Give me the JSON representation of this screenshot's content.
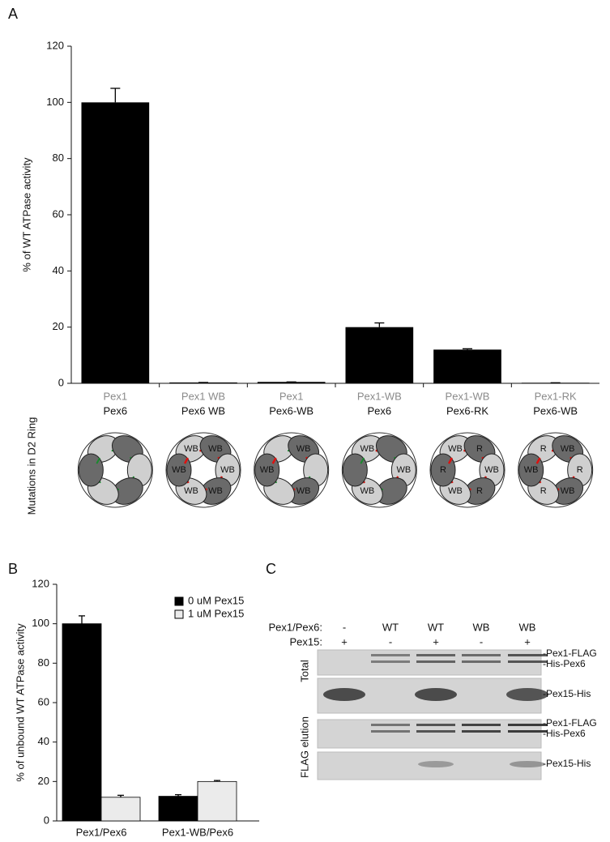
{
  "panels": [
    "A",
    "B",
    "C"
  ],
  "chart_data": [
    {
      "type": "bar",
      "ylabel": "% of WT ATPase activity",
      "categories": [
        [
          "Pex1",
          "Pex6"
        ],
        [
          "Pex1 WB",
          "Pex6 WB"
        ],
        [
          "Pex1",
          "Pex6-WB"
        ],
        [
          "Pex1-WB",
          "Pex6"
        ],
        [
          "Pex1-WB",
          "Pex6-RK"
        ],
        [
          "Pex1-RK",
          "Pex6-WB"
        ]
      ],
      "values": [
        100,
        0.3,
        0.5,
        20,
        12,
        0.2
      ],
      "errors": [
        5,
        0,
        0,
        1.5,
        0.3,
        0
      ],
      "color": "#000000",
      "ylim": [
        0,
        120
      ],
      "yticks": [
        0,
        20,
        40,
        60,
        80,
        100,
        120
      ],
      "annotation": "Mutations in D2 Ring",
      "rings": [
        [
          null,
          null,
          null,
          null,
          null,
          null
        ],
        [
          "WB",
          "WB",
          "WB",
          "WB",
          "WB",
          "WB"
        ],
        [
          null,
          "WB",
          null,
          "WB",
          null,
          "WB"
        ],
        [
          "WB",
          null,
          "WB",
          null,
          "WB",
          null
        ],
        [
          "WB",
          "R",
          "WB",
          "R",
          "WB",
          "R"
        ],
        [
          "R",
          "WB",
          "R",
          "WB",
          "R",
          "WB"
        ]
      ]
    },
    {
      "type": "grouped_bar",
      "ylabel": "% of unbound WT ATPase activity",
      "categories": [
        "Pex1/Pex6",
        "Pex1-WB/Pex6"
      ],
      "series": [
        {
          "name": "0 uM Pex15",
          "color": "#000000",
          "values": [
            100,
            12.5
          ],
          "errors": [
            4,
            0.8
          ]
        },
        {
          "name": "1 uM Pex15",
          "color": "#ebebeb",
          "values": [
            12,
            20
          ],
          "errors": [
            1,
            0.5
          ]
        }
      ],
      "ylim": [
        0,
        120
      ],
      "yticks": [
        0,
        20,
        40,
        60,
        80,
        100,
        120
      ],
      "legend": "upper right"
    }
  ],
  "gel": {
    "row_labels": [
      "Pex1/Pex6:",
      "Pex15:"
    ],
    "lanes": [
      [
        "-",
        "+"
      ],
      [
        "WT",
        "-"
      ],
      [
        "WT",
        "+"
      ],
      [
        "WB",
        "-"
      ],
      [
        "WB",
        "+"
      ]
    ],
    "sections": [
      "Total",
      "FLAG elution"
    ],
    "band_labels": [
      [
        "-Pex1-FLAG",
        "-His-Pex6",
        "-Pex15-His"
      ],
      [
        "-Pex1-FLAG",
        "-His-Pex6",
        "-Pex15-His"
      ]
    ]
  }
}
